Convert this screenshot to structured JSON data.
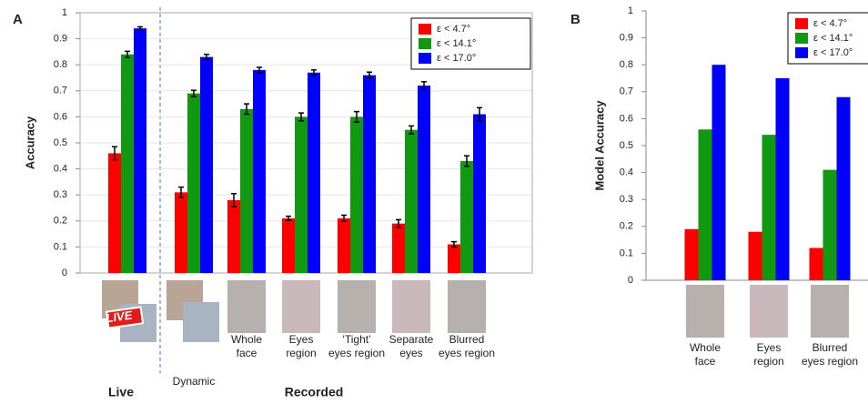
{
  "chart_data": [
    {
      "type": "bar",
      "panel": "A",
      "ylabel": "Accuracy",
      "categories": [
        null,
        "Dynamic",
        "Whole\nface",
        "Eyes\nregion",
        "‘Tight’\neyes region",
        "Separate\neyes",
        "Blurred\neyes region"
      ],
      "series": [
        {
          "name": "ε <  4.7°",
          "color": "#ff0000",
          "values": [
            0.46,
            0.31,
            0.28,
            0.21,
            0.21,
            0.19,
            0.11
          ],
          "errors": [
            0.025,
            0.02,
            0.025,
            0.008,
            0.012,
            0.015,
            0.01
          ]
        },
        {
          "name": "ε < 14.1°",
          "color": "#119911",
          "values": [
            0.84,
            0.69,
            0.63,
            0.6,
            0.6,
            0.55,
            0.43
          ],
          "errors": [
            0.012,
            0.012,
            0.02,
            0.015,
            0.02,
            0.015,
            0.02
          ]
        },
        {
          "name": "ε < 17.0°",
          "color": "#0000ff",
          "values": [
            0.94,
            0.83,
            0.78,
            0.77,
            0.76,
            0.72,
            0.61
          ],
          "errors": [
            0.006,
            0.01,
            0.01,
            0.01,
            0.012,
            0.015,
            0.025
          ]
        }
      ],
      "ylim": [
        0,
        1
      ],
      "yticks": [
        0,
        0.1,
        0.2,
        0.3,
        0.4,
        0.5,
        0.6,
        0.7,
        0.8,
        0.9,
        1
      ],
      "grid": true,
      "legend": "upper right",
      "annotations": [
        "Live",
        "Recorded",
        "LIVE"
      ]
    },
    {
      "type": "bar",
      "panel": "B",
      "ylabel": "Model Accuracy",
      "categories": [
        "Whole\nface",
        "Eyes\nregion",
        "Blurred\neyes region"
      ],
      "series": [
        {
          "name": "ε <  4.7°",
          "color": "#ff0000",
          "values": [
            0.19,
            0.18,
            0.12
          ]
        },
        {
          "name": "ε < 14.1°",
          "color": "#119911",
          "values": [
            0.56,
            0.54,
            0.41
          ]
        },
        {
          "name": "ε < 17.0°",
          "color": "#0000ff",
          "values": [
            0.8,
            0.75,
            0.68
          ]
        }
      ],
      "ylim": [
        0,
        1
      ],
      "yticks": [
        0,
        0.1,
        0.2,
        0.3,
        0.4,
        0.5,
        0.6,
        0.7,
        0.8,
        0.9,
        1
      ],
      "grid": false,
      "legend": "upper right"
    }
  ]
}
